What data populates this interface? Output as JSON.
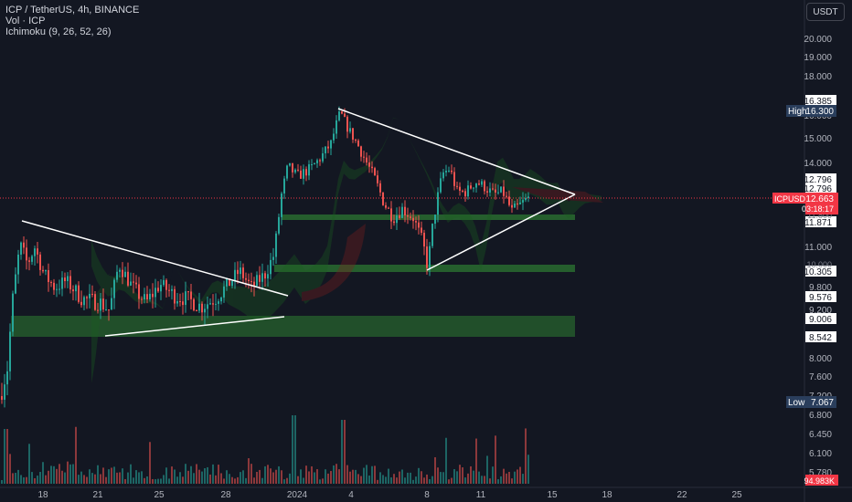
{
  "legend": {
    "title": "ICP / TetherUS, 4h, BINANCE",
    "vol": "Vol · ICP",
    "ichimoku": "Ichimoku (9, 26, 52, 26)"
  },
  "currency_button": "USDT",
  "colors": {
    "background": "#131722",
    "up": "#26a69a",
    "down": "#ef5350",
    "zone": "#2e7d32",
    "trendline": "#ffffff",
    "axis_text": "#b2b5be",
    "price_badge": "#f23645",
    "label_bg": "#ffffff"
  },
  "chart_data": {
    "type": "candlestick",
    "symbol": "ICPUSDT",
    "y_ticks": [
      "20.000",
      "19.000",
      "18.000",
      "16.000",
      "15.000",
      "14.000",
      "11.000",
      "9.800",
      "9.200",
      "8.000",
      "7.600",
      "7.200",
      "6.800",
      "6.450",
      "6.100",
      "5.780"
    ],
    "x_ticks": [
      "18",
      "21",
      "25",
      "28",
      "2024",
      "4",
      "8",
      "11",
      "15",
      "18",
      "22",
      "25"
    ],
    "price_labels": [
      {
        "text": "16.385",
        "style": "white"
      },
      {
        "text": "12.796",
        "style": "white"
      },
      {
        "text": "12.796",
        "style": "white"
      },
      {
        "text": "11.871",
        "style": "white"
      },
      {
        "text": "10.305",
        "style": "white"
      },
      {
        "text": "9.576",
        "style": "white"
      },
      {
        "text": "9.006",
        "style": "white"
      },
      {
        "text": "8.542",
        "style": "white"
      },
      {
        "text": "11.800",
        "style": "faint"
      },
      {
        "text": "10.000",
        "style": "faint"
      }
    ],
    "high": {
      "label": "High",
      "value": "16.300"
    },
    "low": {
      "label": "Low",
      "value": "7.067"
    },
    "last": {
      "symbol": "ICPUSDT",
      "price": "12.663",
      "countdown": "03:18:17"
    },
    "volume_last": "94.983K",
    "support_zones": [
      {
        "from": 8.54,
        "to": 9.01
      },
      {
        "from": 10.2,
        "to": 10.35
      },
      {
        "from": 11.85,
        "to": 11.95
      }
    ]
  }
}
